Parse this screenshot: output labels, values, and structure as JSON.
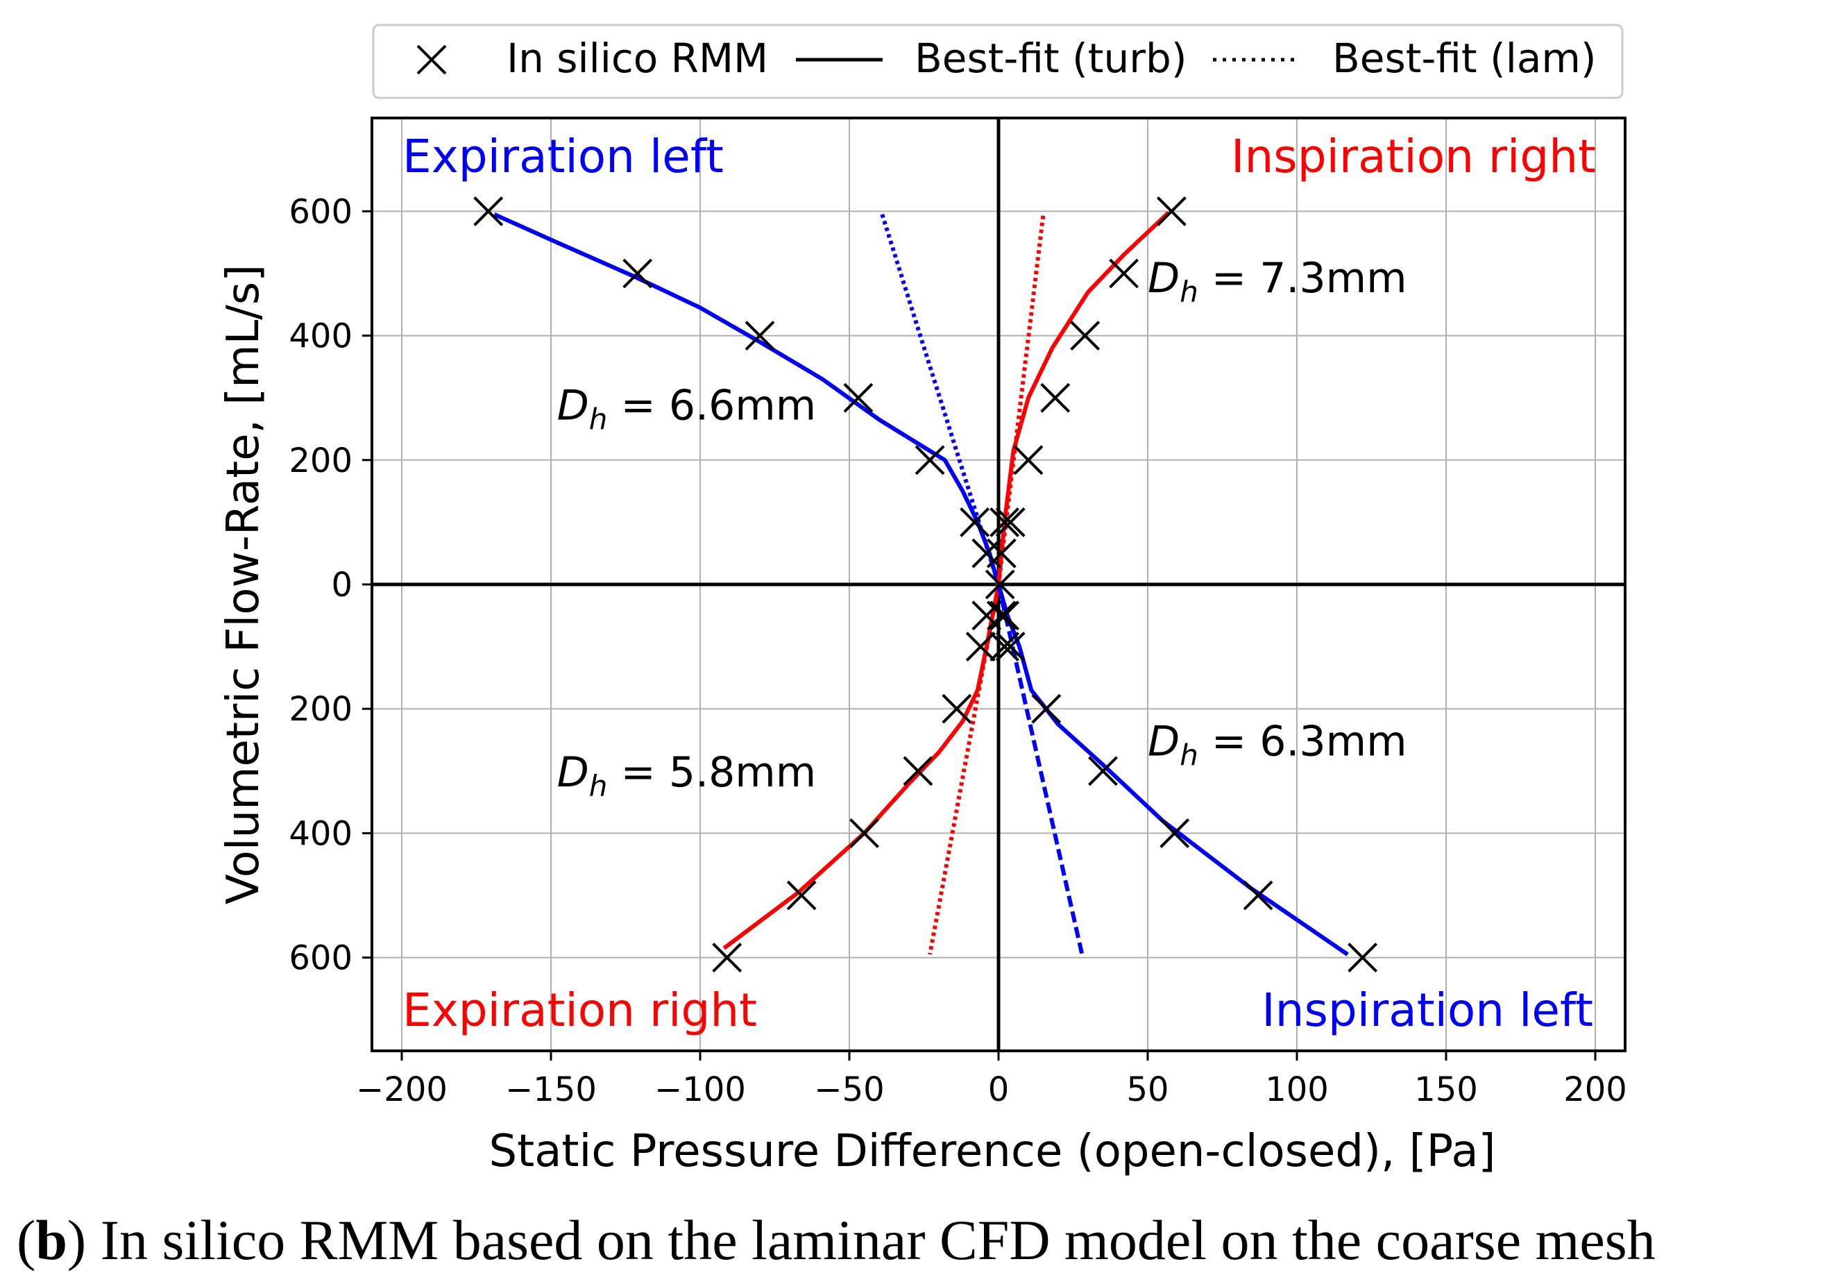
{
  "chart_data": {
    "type": "line",
    "xlabel": "Static Pressure Difference (open-closed), [Pa]",
    "ylabel": "Volumetric Flow-Rate, [mL/s]",
    "xlim": [
      -210,
      210
    ],
    "ylim": [
      -750,
      750
    ],
    "x_ticks": [
      -200,
      -150,
      -100,
      -50,
      0,
      50,
      100,
      150,
      200
    ],
    "x_tick_labels": [
      "−200",
      "−150",
      "−100",
      "−50",
      "0",
      "50",
      "100",
      "150",
      "200"
    ],
    "y_ticks": [
      600,
      400,
      200,
      0,
      -200,
      -400,
      -600
    ],
    "y_tick_labels": [
      "600",
      "400",
      "200",
      "0",
      "200",
      "400",
      "600"
    ],
    "grid": true,
    "legend": {
      "position": "top",
      "entries": [
        {
          "label": "In silico RMM",
          "style": "marker-x"
        },
        {
          "label": "Best-fit (turb)",
          "style": "solid"
        },
        {
          "label": "Best-fit (lam)",
          "style": "dotted"
        }
      ]
    },
    "quadrant_labels": [
      {
        "text": "Expiration left",
        "color": "#0000ff",
        "position": "top-left"
      },
      {
        "text": "Inspiration right",
        "color": "#ff0000",
        "position": "top-right"
      },
      {
        "text": "Expiration right",
        "color": "#ff0000",
        "position": "bottom-left"
      },
      {
        "text": "Inspiration left",
        "color": "#0000ff",
        "position": "bottom-right"
      }
    ],
    "annotations": [
      {
        "symbol": "D",
        "sub": "h",
        "value": " = 6.6mm",
        "x": -148,
        "y": 265
      },
      {
        "symbol": "D",
        "sub": "h",
        "value": " = 7.3mm",
        "x": 50,
        "y": 470
      },
      {
        "symbol": "D",
        "sub": "h",
        "value": " = 5.8mm",
        "x": -148,
        "y": -325
      },
      {
        "symbol": "D",
        "sub": "h",
        "value": " = 6.3mm",
        "x": 50,
        "y": -275
      }
    ],
    "series": [
      {
        "name": "In silico RMM",
        "kind": "marker",
        "color": "#000000",
        "x": [
          -171,
          -121,
          -80,
          -47,
          -23,
          -8,
          -4,
          0.5,
          1,
          2,
          4,
          10,
          19,
          29,
          42,
          58,
          -4,
          1,
          -6,
          2,
          -14,
          16,
          -27,
          35,
          -45,
          59,
          -66,
          87,
          -91,
          122,
          4,
          2
        ],
        "y": [
          600,
          500,
          400,
          300,
          200,
          100,
          50,
          0,
          50,
          100,
          100,
          200,
          300,
          400,
          500,
          600,
          -50,
          -50,
          -100,
          -100,
          -200,
          -200,
          -300,
          -300,
          -400,
          -400,
          -500,
          -500,
          -600,
          -600,
          -100,
          -50
        ]
      },
      {
        "name": "Expiration left (turb)",
        "kind": "solid",
        "color": "#0000ff",
        "x": [
          -169,
          -148,
          -122,
          -100,
          -80,
          -59,
          -40,
          -18,
          -12,
          -7,
          -3,
          -1,
          0
        ],
        "y": [
          595,
          550,
          495,
          445,
          390,
          330,
          265,
          200,
          150,
          100,
          50,
          15,
          0
        ]
      },
      {
        "name": "Expiration left (lam)",
        "kind": "dotted",
        "color": "#0000ff",
        "x": [
          -39,
          0
        ],
        "y": [
          595,
          0
        ]
      },
      {
        "name": "Inspiration right (turb)",
        "kind": "solid",
        "color": "#ff0000",
        "x": [
          0,
          2,
          5,
          10,
          18,
          30,
          42,
          57
        ],
        "y": [
          0,
          100,
          215,
          300,
          380,
          470,
          530,
          598
        ]
      },
      {
        "name": "Inspiration right (lam)",
        "kind": "dotted",
        "color": "#ff0000",
        "x": [
          0,
          15
        ],
        "y": [
          0,
          595
        ]
      },
      {
        "name": "Expiration right (turb)",
        "kind": "solid",
        "color": "#ff0000",
        "x": [
          0,
          -2,
          -4,
          -7,
          -12,
          -20,
          -30,
          -45,
          -67,
          -92
        ],
        "y": [
          0,
          -50,
          -100,
          -170,
          -220,
          -270,
          -320,
          -400,
          -495,
          -585
        ]
      },
      {
        "name": "Expiration right (lam)",
        "kind": "dotted",
        "color": "#ff0000",
        "x": [
          0,
          -23
        ],
        "y": [
          0,
          -595
        ]
      },
      {
        "name": "Inspiration left (turb)",
        "kind": "solid",
        "color": "#0000ff",
        "x": [
          0,
          3,
          7,
          11,
          20,
          35,
          55,
          85,
          117
        ],
        "y": [
          0,
          -50,
          -100,
          -170,
          -225,
          -290,
          -380,
          -490,
          -595
        ]
      },
      {
        "name": "Inspiration left (lam)",
        "kind": "dashed",
        "color": "#0000ff",
        "x": [
          0,
          28
        ],
        "y": [
          0,
          -595
        ]
      }
    ]
  },
  "caption": {
    "open_paren": "(",
    "label": "b",
    "text": ") In silico RMM based on the laminar CFD model on the coarse mesh"
  }
}
